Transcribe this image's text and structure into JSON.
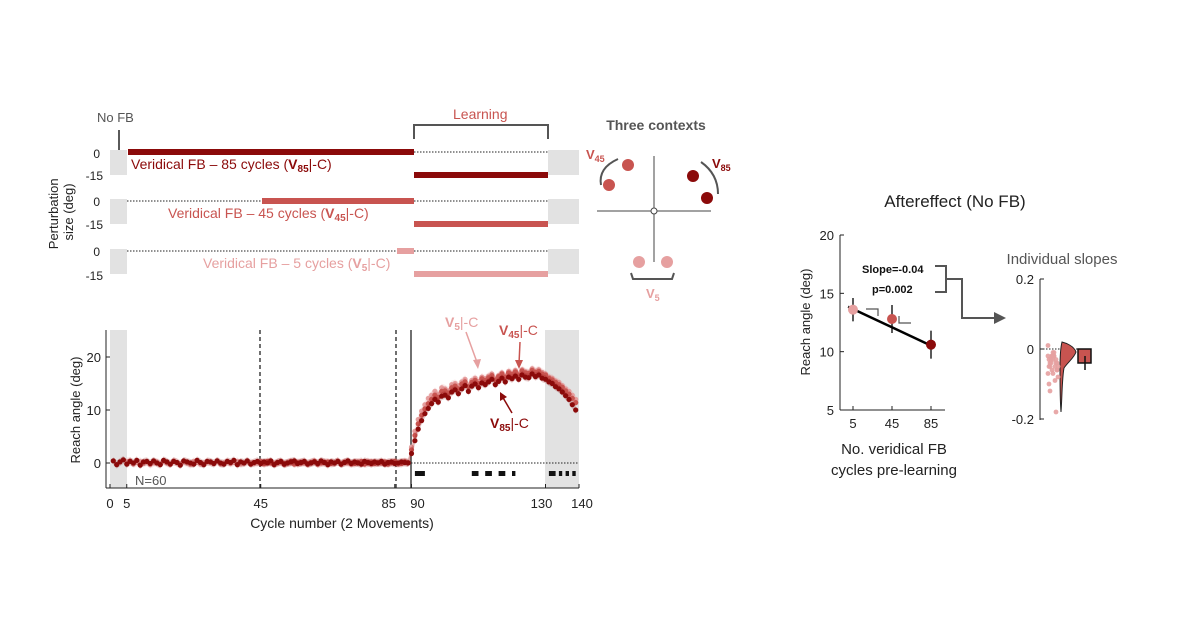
{
  "colors": {
    "v85": "#8b0a0a",
    "v45": "#c85450",
    "v5": "#e6a0a0",
    "shade": "#e2e2e2",
    "dark": "#222222",
    "gray": "#555555"
  },
  "panel_a": {
    "no_fb_label": "No FB",
    "learning_label": "Learning",
    "ylabel_line1": "Perturbation",
    "ylabel_line2": "size (deg)",
    "tick_0": "0",
    "tick_m15": "-15",
    "row_v85": {
      "pre": "Veridical FB – 85 cycles (",
      "sym": "V",
      "sub": "85",
      "post": "|-C)"
    },
    "row_v45": {
      "pre": "Veridical FB – 45 cycles (",
      "sym": "V",
      "sub": "45",
      "post": "|-C)"
    },
    "row_v5": {
      "pre": "Veridical FB – 5 cycles (",
      "sym": "V",
      "sub": "5",
      "post": "|-C)"
    }
  },
  "contexts": {
    "title": "Three contexts",
    "v45": {
      "sym": "V",
      "sub": "45"
    },
    "v85": {
      "sym": "V",
      "sub": "85"
    },
    "v5": {
      "sym": "V",
      "sub": "5"
    }
  },
  "panel_b": {
    "ylabel": "Reach angle (deg)",
    "xlabel": "Cycle number (2 Movements)",
    "n_label": "N=60",
    "lab_v5": {
      "sym": "V",
      "sub": "5",
      "post": "|-C"
    },
    "lab_v45": {
      "sym": "V",
      "sub": "45",
      "post": "|-C"
    },
    "lab_v85": {
      "sym": "V",
      "sub": "85",
      "post": "|-C"
    }
  },
  "panel_c": {
    "title": "Aftereffect (No FB)",
    "ylabel": "Reach angle (deg)",
    "xlabel_line1": "No. veridical FB",
    "xlabel_line2": "cycles pre-learning",
    "slope_text": "Slope=-0.04",
    "p_text": "p=0.002"
  },
  "panel_d": {
    "title": "Individual slopes"
  },
  "chart_data": [
    {
      "type": "line",
      "title": "",
      "xlabel": "Cycle number (2 Movements)",
      "ylabel": "Reach angle (deg)",
      "xlim": [
        0,
        140
      ],
      "ylim": [
        -3,
        25
      ],
      "x_ticks": [
        0,
        5,
        45,
        85,
        90,
        130,
        140
      ],
      "y_ticks": [
        0,
        10,
        20
      ],
      "annotation": "N=60",
      "series": [
        {
          "name": "V5|-C",
          "color": "#e6a0a0",
          "onset": 5,
          "x_start": 5,
          "x_end": 140,
          "values": [
            0.3,
            0.4,
            -0.2,
            0.1,
            0.3,
            -0.1,
            0.2,
            -0.3,
            0.0,
            0.2,
            -0.1,
            0.3,
            0.0,
            -0.2,
            0.4,
            0.1,
            -0.1,
            0.2,
            0.0,
            -0.3,
            0.3,
            0.1,
            -0.2,
            0.0,
            0.2,
            0.1,
            -0.1,
            0.3,
            -0.2,
            0.0,
            0.2,
            -0.1,
            0.1,
            0.3,
            -0.2,
            0.0,
            0.2,
            0.1,
            -0.1,
            0.0,
            0.3,
            -0.2,
            0.1,
            0.2,
            -0.1,
            0.0,
            0.2,
            -0.3,
            0.1,
            0.0,
            0.3,
            -0.1,
            0.2,
            0.0,
            -0.2,
            0.1,
            0.3,
            -0.1,
            0.0,
            0.2,
            -0.2,
            0.1,
            0.0,
            0.3,
            -0.1,
            0.2,
            0.0,
            -0.2,
            0.1,
            0.2,
            -0.1,
            0.0,
            0.3,
            -0.2,
            0.1,
            0.0,
            0.2,
            -0.1,
            0.1,
            0.0,
            0.2,
            -0.2,
            0.1,
            0.3,
            0.0,
            3.0,
            6.0,
            8.2,
            9.8,
            11.0,
            12.2,
            12.8,
            13.5,
            13.0,
            14.2,
            14.0,
            13.6,
            14.8,
            15.0,
            14.6,
            15.3,
            15.8,
            14.7,
            15.6,
            16.0,
            15.4,
            16.2,
            15.9,
            16.4,
            16.8,
            15.9,
            16.5,
            17.0,
            16.4,
            17.3,
            16.9,
            17.5,
            16.8,
            17.6,
            17.2,
            17.0,
            17.8,
            17.3,
            17.6,
            17.1,
            16.8,
            16.2,
            16.0,
            15.5,
            15.2,
            14.6,
            14.0,
            13.5,
            12.8,
            12.0
          ]
        },
        {
          "name": "V45|-C",
          "color": "#c85450",
          "onset": 45,
          "x_start": 45,
          "x_end": 140,
          "values": [
            0.2,
            -0.1,
            0.3,
            0.0,
            -0.2,
            0.1,
            0.2,
            -0.1,
            0.0,
            0.3,
            -0.2,
            0.1,
            0.0,
            0.2,
            -0.1,
            0.1,
            0.3,
            -0.2,
            0.0,
            0.1,
            0.2,
            -0.1,
            0.0,
            0.3,
            -0.2,
            0.1,
            0.2,
            0.0,
            -0.1,
            0.1,
            0.3,
            -0.2,
            0.0,
            0.2,
            -0.1,
            0.1,
            0.0,
            0.2,
            -0.2,
            0.1,
            0.3,
            0.0,
            -0.1,
            0.2,
            0.1,
            2.5,
            5.2,
            7.4,
            9.0,
            10.2,
            11.2,
            12.0,
            12.8,
            12.4,
            13.5,
            13.6,
            13.2,
            14.2,
            14.5,
            14.0,
            14.9,
            15.3,
            14.4,
            15.2,
            15.6,
            15.0,
            15.9,
            15.6,
            16.1,
            16.5,
            15.7,
            16.3,
            16.8,
            16.2,
            17.0,
            16.7,
            17.2,
            16.6,
            17.4,
            17.0,
            16.9,
            17.5,
            17.1,
            17.3,
            16.8,
            16.6,
            16.0,
            15.7,
            15.2,
            14.8,
            14.3,
            13.6,
            13.0,
            12.2,
            11.4
          ]
        },
        {
          "name": "V85|-C",
          "color": "#8b0a0a",
          "onset": 1,
          "x_start": 1,
          "x_end": 140,
          "values": [
            0.4,
            -0.3,
            0.2,
            0.6,
            -0.2,
            0.3,
            0.0,
            0.5,
            -0.4,
            0.2,
            0.3,
            -0.1,
            0.4,
            0.0,
            -0.3,
            0.5,
            0.2,
            -0.2,
            0.3,
            0.1,
            -0.4,
            0.4,
            0.2,
            0.0,
            -0.2,
            0.5,
            0.1,
            -0.3,
            0.3,
            0.2,
            -0.1,
            0.4,
            0.0,
            -0.2,
            0.3,
            0.1,
            0.5,
            -0.3,
            0.2,
            0.0,
            0.4,
            -0.2,
            0.1,
            0.3,
            -0.1,
            0.2,
            0.0,
            0.4,
            -0.3,
            0.1,
            0.3,
            -0.2,
            0.0,
            0.2,
            0.4,
            -0.1,
            0.1,
            0.3,
            -0.2,
            0.0,
            0.2,
            -0.1,
            0.4,
            0.1,
            -0.3,
            0.2,
            0.0,
            0.3,
            -0.2,
            0.1,
            0.4,
            -0.1,
            0.2,
            0.0,
            -0.2,
            0.3,
            0.1,
            -0.1,
            0.2,
            0.0,
            0.3,
            -0.2,
            0.1,
            0.2,
            -0.1,
            0.0,
            0.2,
            0.1,
            0.0,
            1.8,
            4.2,
            6.4,
            8.0,
            9.3,
            10.3,
            11.2,
            12.0,
            11.5,
            12.6,
            12.8,
            12.3,
            13.4,
            13.8,
            13.1,
            14.0,
            14.6,
            13.5,
            14.5,
            14.9,
            14.2,
            15.1,
            14.8,
            15.3,
            15.8,
            14.8,
            15.4,
            16.0,
            15.3,
            16.2,
            15.9,
            16.4,
            15.8,
            16.6,
            16.2,
            16.1,
            16.8,
            16.3,
            16.6,
            16.0,
            15.8,
            15.3,
            15.0,
            14.4,
            14.0,
            13.4,
            12.7,
            12.0,
            11.0,
            10.0
          ]
        }
      ],
      "shaded_regions": [
        [
          0,
          5
        ],
        [
          130,
          140
        ]
      ],
      "dashed_lines_x": [
        45,
        85
      ],
      "solid_line_x": 90,
      "significance_bars": [
        [
          91,
          94
        ],
        [
          108,
          110
        ],
        [
          112,
          114
        ],
        [
          116,
          118
        ],
        [
          120,
          121
        ],
        [
          131,
          133
        ],
        [
          134,
          135
        ],
        [
          136,
          137
        ],
        [
          138,
          139
        ]
      ]
    },
    {
      "type": "scatter",
      "title": "Aftereffect (No FB)",
      "xlabel": "No. veridical FB cycles pre-learning",
      "ylabel": "Reach angle (deg)",
      "categories": [
        "5",
        "45",
        "85"
      ],
      "x": [
        5,
        45,
        85
      ],
      "values": [
        13.6,
        12.8,
        10.6
      ],
      "error": [
        1.0,
        1.2,
        1.2
      ],
      "colors": [
        "#e6a0a0",
        "#c85450",
        "#8b0a0a"
      ],
      "fit_line": {
        "x": [
          0,
          88
        ],
        "y": [
          13.85,
          10.4
        ]
      },
      "ylim": [
        5,
        20
      ],
      "y_ticks": [
        5,
        10,
        15,
        20
      ],
      "x_ticks": [
        5,
        45,
        85
      ],
      "annotation": [
        "Slope=-0.04",
        "p=0.002"
      ]
    },
    {
      "type": "bar",
      "title": "Individual slopes",
      "ylim": [
        -0.2,
        0.2
      ],
      "y_ticks": [
        -0.2,
        0,
        0.2
      ],
      "bar_value": -0.04,
      "bar_error": 0.02,
      "individual_points": [
        0.01,
        -0.02,
        -0.03,
        -0.05,
        -0.01,
        -0.06,
        -0.04,
        -0.02,
        -0.08,
        -0.03,
        -0.05,
        -0.07,
        -0.02,
        -0.04,
        -0.1,
        -0.03,
        -0.06,
        -0.12,
        -0.01,
        -0.05,
        -0.04,
        -0.09,
        -0.02,
        -0.06,
        -0.18,
        -0.03,
        -0.07,
        -0.04,
        -0.05,
        -0.02
      ]
    }
  ]
}
